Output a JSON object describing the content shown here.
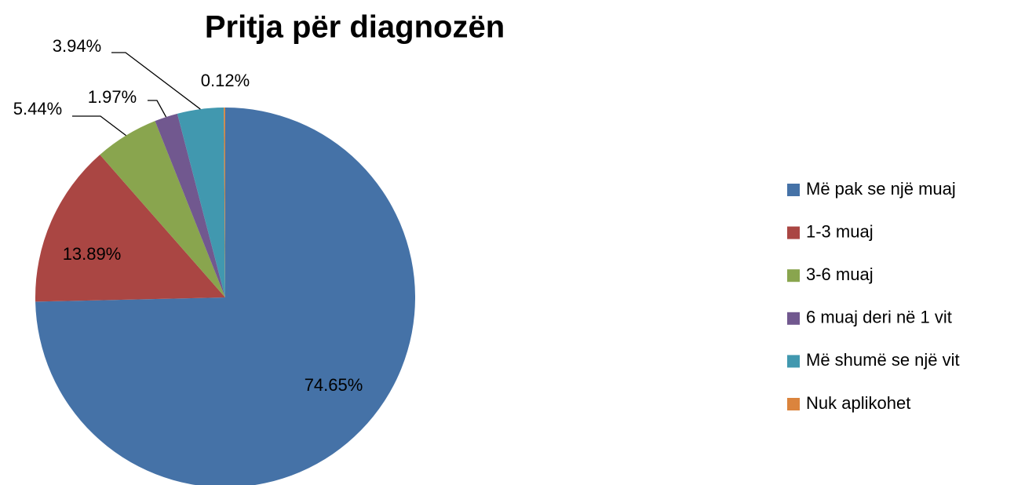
{
  "chart_data": {
    "type": "pie",
    "title": "Pritja për diagnozën",
    "categories": [
      "Më pak se një muaj",
      "1-3 muaj",
      "3-6 muaj",
      "6 muaj deri në 1 vit",
      "Më shumë se një vit",
      "Nuk aplikohet"
    ],
    "values": [
      74.65,
      13.89,
      5.44,
      1.97,
      3.94,
      0.12
    ],
    "value_labels": [
      "74.65%",
      "13.89%",
      "5.44%",
      "1.97%",
      "3.94%",
      "0.12%"
    ],
    "colors": [
      "#4572a7",
      "#aa4643",
      "#89a54e",
      "#71588f",
      "#4198af",
      "#db843d"
    ],
    "legend": "right"
  }
}
